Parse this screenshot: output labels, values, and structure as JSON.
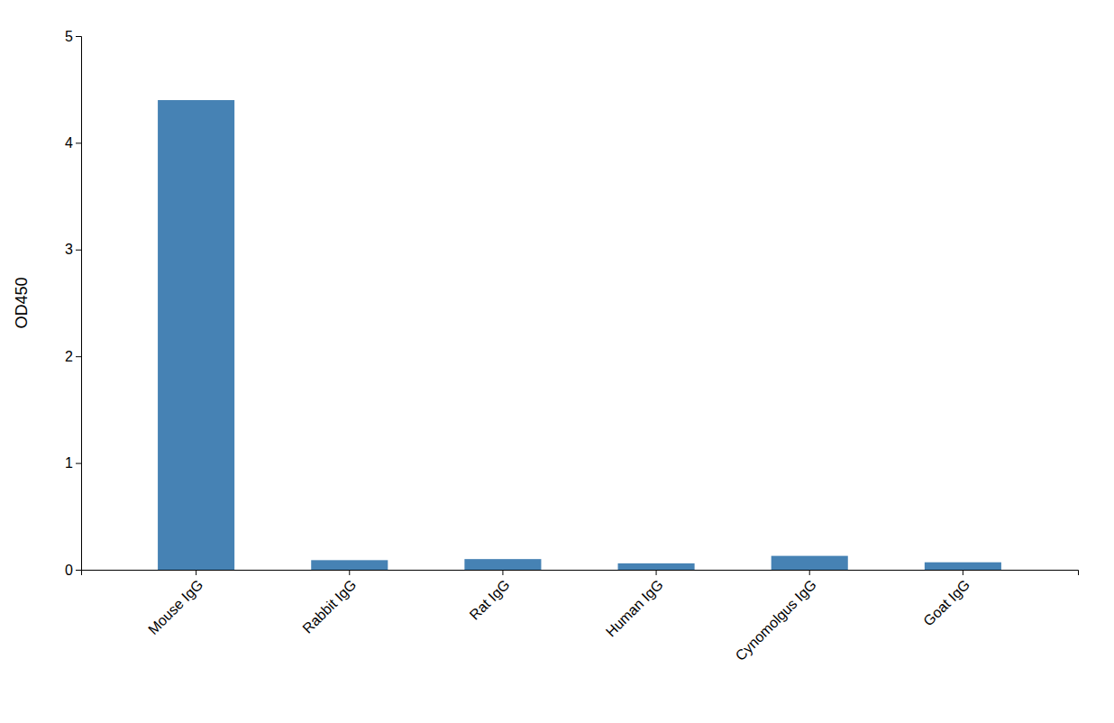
{
  "chart_data": {
    "type": "bar",
    "categories": [
      "Mouse IgG",
      "Rabbit IgG",
      "Rat IgG",
      "Human IgG",
      "Cynomolgus IgG",
      "Goat IgG"
    ],
    "values": [
      4.4,
      0.09,
      0.1,
      0.06,
      0.13,
      0.07
    ],
    "color": "#4682b4",
    "ylabel": "OD450",
    "ylim": [
      0,
      5
    ],
    "yticks": [
      0,
      1,
      2,
      3,
      4,
      5
    ]
  }
}
